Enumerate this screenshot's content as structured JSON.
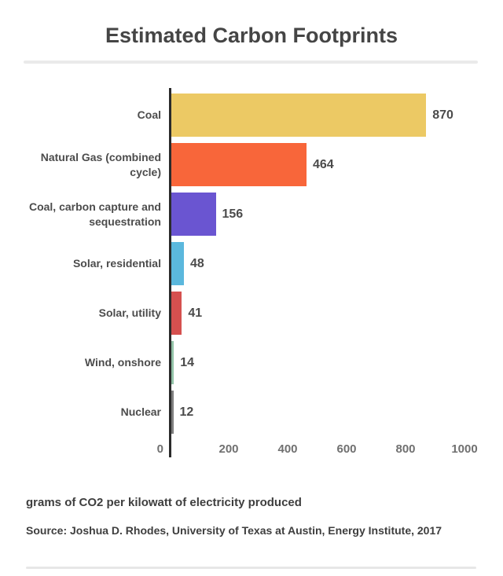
{
  "chart_data": {
    "type": "bar",
    "orientation": "horizontal",
    "title": "Estimated Carbon Footprints",
    "categories": [
      "Coal",
      "Natural Gas (combined cycle)",
      "Coal, carbon capture and sequestration",
      "Solar, residential",
      "Solar, utility",
      "Wind, onshore",
      "Nuclear"
    ],
    "values": [
      870,
      464,
      156,
      48,
      41,
      14,
      12
    ],
    "bar_colors": [
      "#ecc964",
      "#f8663a",
      "#6a55d1",
      "#5bb8dd",
      "#d5504f",
      "#93c3a8",
      "#7f7f7f"
    ],
    "x_ticks": [
      0,
      200,
      400,
      600,
      800,
      1000
    ],
    "xlim": [
      0,
      1000
    ],
    "grid": false,
    "legend": "none",
    "value_labels_shown": true,
    "xlabel": "grams of CO2 per kilowatt of electricity produced"
  },
  "footer": {
    "caption": "grams of CO2 per kilowatt of electricity produced",
    "source": "Source: Joshua D. Rhodes, University of Texas at Austin, Energy Institute, 2017"
  },
  "colors": {
    "axis_line": "#2b2b2b",
    "title_text": "#454545",
    "label_text": "#4c4c4c",
    "tick_text": "#707070",
    "rule": "#eaeaea"
  }
}
